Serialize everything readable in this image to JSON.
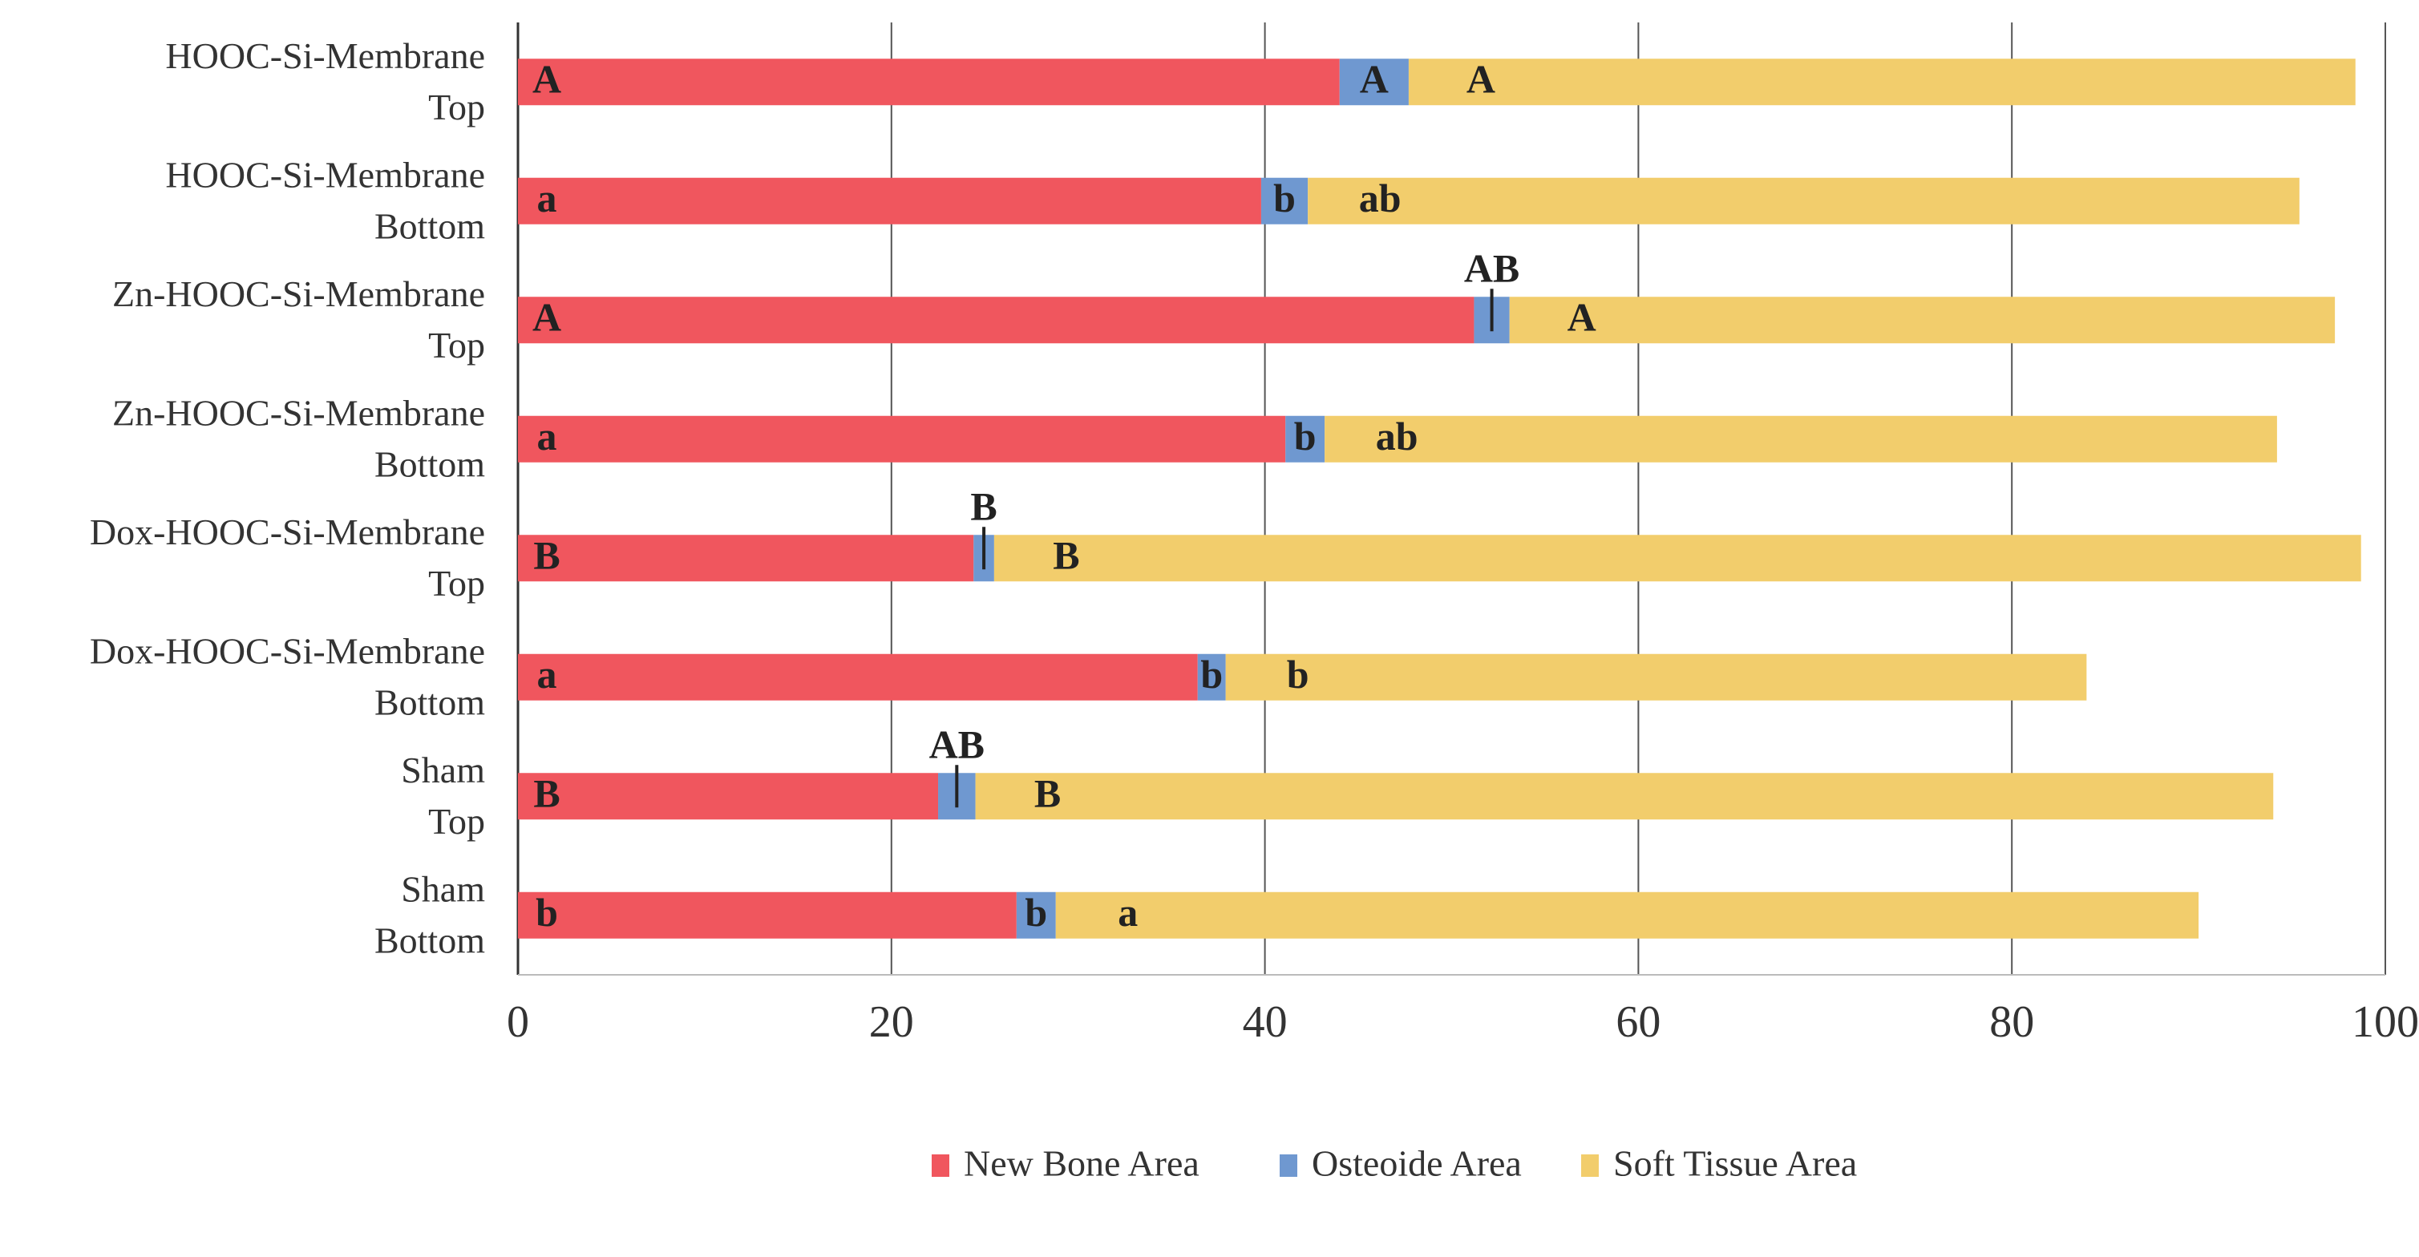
{
  "chart_data": {
    "type": "stacked-bar-horizontal",
    "categories": [
      [
        "HOOC-Si-Membrane",
        "Top"
      ],
      [
        "HOOC-Si-Membrane",
        "Bottom"
      ],
      [
        "Zn-HOOC-Si-Membrane",
        "Top"
      ],
      [
        "Zn-HOOC-Si-Membrane",
        "Bottom"
      ],
      [
        "Dox-HOOC-Si-Membrane",
        "Top"
      ],
      [
        "Dox-HOOC-Si-Membrane",
        "Bottom"
      ],
      [
        "Sham",
        "Top"
      ],
      [
        "Sham",
        "Bottom"
      ]
    ],
    "series": [
      {
        "name": "New Bone Area",
        "color": "#f0565e",
        "values": [
          44.0,
          39.8,
          51.2,
          41.1,
          24.4,
          36.4,
          22.5,
          26.7
        ],
        "annotations": [
          "A",
          "a",
          "A",
          "a",
          "B",
          "a",
          "B",
          "b"
        ]
      },
      {
        "name": "Osteoide Area",
        "color": "#6f98d0",
        "values": [
          3.7,
          2.5,
          1.9,
          2.1,
          1.1,
          1.5,
          2.0,
          2.1
        ],
        "annotations": [
          "A",
          "b",
          "AB",
          "b",
          "B",
          "b",
          "AB",
          "b"
        ]
      },
      {
        "name": "Soft Tissue Area",
        "color": "#f2cd6c",
        "values": [
          50.7,
          53.1,
          44.2,
          51.0,
          73.2,
          46.1,
          69.5,
          61.2
        ],
        "annotations": [
          "A",
          "ab",
          "A",
          "ab",
          "B",
          "b",
          "B",
          "a"
        ]
      }
    ],
    "xlim": [
      0,
      100
    ],
    "xticks": [
      0,
      20,
      40,
      60,
      80,
      100
    ],
    "grid": true,
    "legend": "bottom"
  }
}
